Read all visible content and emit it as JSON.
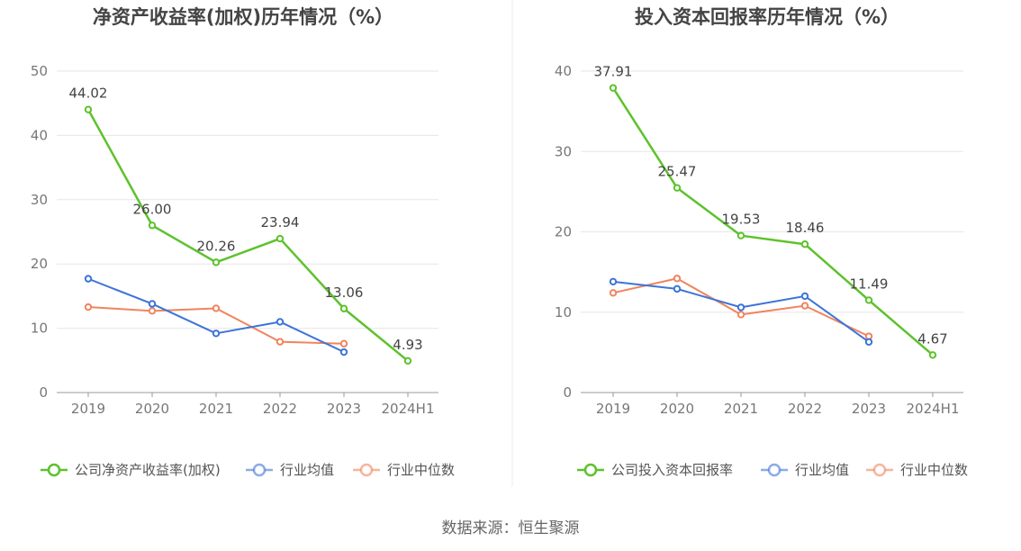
{
  "source": "数据来源：恒生聚源",
  "colors": {
    "company": "#5dc22c",
    "avg": "#3d74d8",
    "median": "#f0845e",
    "grid": "#e6e6e6",
    "axis": "#999999"
  },
  "chart_data": [
    {
      "type": "line",
      "title": "净资产收益率(加权)历年情况（%）",
      "categories": [
        "2019",
        "2020",
        "2021",
        "2022",
        "2023",
        "2024H1"
      ],
      "ylim": [
        0,
        50
      ],
      "yticks": [
        0,
        10,
        20,
        30,
        40,
        50
      ],
      "grid": true,
      "legend_placement": "bottom",
      "series": [
        {
          "name": "公司净资产收益率(加权)",
          "values": [
            44.02,
            26.0,
            20.26,
            23.94,
            13.06,
            4.93
          ],
          "labels": [
            "44.02",
            "26.00",
            "20.26",
            "23.94",
            "13.06",
            "4.93"
          ]
        },
        {
          "name": "行业均值",
          "values": [
            17.7,
            13.8,
            9.2,
            11.0,
            6.3,
            null
          ]
        },
        {
          "name": "行业中位数",
          "values": [
            13.3,
            12.7,
            13.1,
            7.9,
            7.6,
            null
          ]
        }
      ]
    },
    {
      "type": "line",
      "title": "投入资本回报率历年情况（%）",
      "categories": [
        "2019",
        "2020",
        "2021",
        "2022",
        "2023",
        "2024H1"
      ],
      "ylim": [
        0,
        40
      ],
      "yticks": [
        0,
        10,
        20,
        30,
        40
      ],
      "grid": true,
      "legend_placement": "bottom",
      "series": [
        {
          "name": "公司投入资本回报率",
          "values": [
            37.91,
            25.47,
            19.53,
            18.46,
            11.49,
            4.67
          ],
          "labels": [
            "37.91",
            "25.47",
            "19.53",
            "18.46",
            "11.49",
            "4.67"
          ]
        },
        {
          "name": "行业均值",
          "values": [
            13.8,
            12.9,
            10.6,
            12.0,
            6.3,
            null
          ]
        },
        {
          "name": "行业中位数",
          "values": [
            12.4,
            14.2,
            9.7,
            10.8,
            7.0,
            null
          ]
        }
      ]
    }
  ]
}
